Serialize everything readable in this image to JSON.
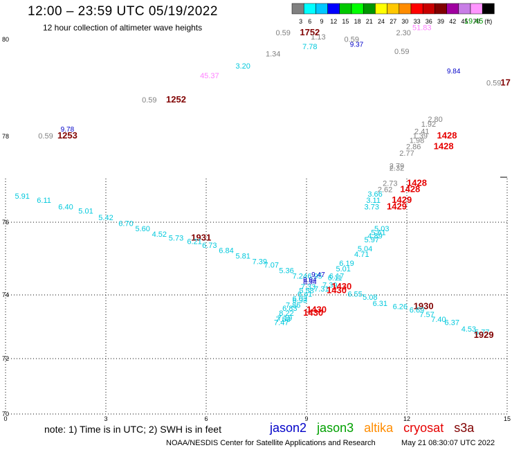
{
  "header": {
    "title": "12:00 – 23:59 UTC 05/19/2022",
    "subtitle": "12 hour collection of altimeter wave heights"
  },
  "scale": {
    "colors": [
      "#808080",
      "#00ffff",
      "#00c8ff",
      "#0000ff",
      "#00c800",
      "#00ff00",
      "#009600",
      "#ffff00",
      "#ffc800",
      "#ff8c00",
      "#ff0000",
      "#c80000",
      "#800000",
      "#a000a0",
      "#c87ee6",
      "#ff96ff",
      "#000000"
    ],
    "labels": [
      "3",
      "6",
      "9",
      "12",
      "15",
      "18",
      "21",
      "24",
      "27",
      "30",
      "33",
      "36",
      "39",
      "42",
      "45",
      "70",
      "(ft)"
    ]
  },
  "note": "note:  1) Time is in UTC;  2) SWH is in feet",
  "legend": [
    {
      "name": "jason2",
      "color": "#0000c8"
    },
    {
      "name": "jason3",
      "color": "#00a000"
    },
    {
      "name": "altika",
      "color": "#ff8c00"
    },
    {
      "name": "cryosat",
      "color": "#e60000"
    },
    {
      "name": "s3a",
      "color": "#800000"
    }
  ],
  "footer": {
    "left": "NOAA/NESDIS Center for Satellite Applications and Research",
    "right": "May 21 08:30:07 UTC 2022"
  },
  "chart_data": {
    "type": "scatter",
    "title": "12:00 – 23:59 UTC 05/19/2022",
    "xlim": [
      0,
      15
    ],
    "ylim": [
      70,
      80
    ],
    "xticks": [
      "0",
      "3",
      "6",
      "9",
      "12",
      "15"
    ],
    "yticks": [
      "70",
      "72",
      "74",
      "76",
      "78",
      "80"
    ],
    "grid": true,
    "points": [
      {
        "x": 1.2,
        "y": 77.95,
        "text": "0.59",
        "color": "#808080",
        "size": 11
      },
      {
        "x": 1.85,
        "y": 78.1,
        "text": "9.78",
        "color": "#0000c8",
        "size": 10
      },
      {
        "x": 1.85,
        "y": 77.95,
        "text": "1253",
        "color": "#800000",
        "size": 13,
        "bold": true
      },
      {
        "x": 4.3,
        "y": 78.7,
        "text": "0.59",
        "color": "#808080",
        "size": 11
      },
      {
        "x": 5.1,
        "y": 78.7,
        "text": "1252",
        "color": "#800000",
        "size": 13,
        "bold": true
      },
      {
        "x": 6.1,
        "y": 79.2,
        "text": "45.37",
        "color": "#ff80ff",
        "size": 11
      },
      {
        "x": 7.1,
        "y": 79.4,
        "text": "3.20",
        "color": "#00c8dc",
        "size": 11
      },
      {
        "x": 8.0,
        "y": 79.65,
        "text": "1.34",
        "color": "#808080",
        "size": 11
      },
      {
        "x": 8.3,
        "y": 80.15,
        "text": "0.59",
        "color": "#808080",
        "size": 11
      },
      {
        "x": 9.1,
        "y": 80.15,
        "text": "1752",
        "color": "#800000",
        "size": 13,
        "bold": true
      },
      {
        "x": 9.35,
        "y": 80.0,
        "text": "1.13",
        "color": "#808080",
        "size": 11
      },
      {
        "x": 9.1,
        "y": 79.8,
        "text": "7.78",
        "color": "#00c8dc",
        "size": 11
      },
      {
        "x": 10.35,
        "y": 79.95,
        "text": "0.59",
        "color": "#808080",
        "size": 11
      },
      {
        "x": 10.5,
        "y": 79.85,
        "text": "9.37",
        "color": "#0000c8",
        "size": 10
      },
      {
        "x": 11.9,
        "y": 80.15,
        "text": "2.30",
        "color": "#808080",
        "size": 11
      },
      {
        "x": 11.85,
        "y": 79.7,
        "text": "0.59",
        "color": "#808080",
        "size": 11
      },
      {
        "x": 12.45,
        "y": 80.35,
        "text": "51.83",
        "color": "#ff80ff",
        "size": 11
      },
      {
        "x": 14.0,
        "y": 80.6,
        "text": "19.45",
        "color": "#009600",
        "size": 11
      },
      {
        "x": 13.4,
        "y": 79.3,
        "text": "9.84",
        "color": "#0000c8",
        "size": 10
      },
      {
        "x": 14.6,
        "y": 79.05,
        "text": "0.59",
        "color": "#808080",
        "size": 11
      },
      {
        "x": 12.85,
        "y": 78.3,
        "text": "2.80",
        "color": "#808080",
        "size": 11
      },
      {
        "x": 12.65,
        "y": 78.2,
        "text": "1.92",
        "color": "#808080",
        "size": 11
      },
      {
        "x": 12.45,
        "y": 78.05,
        "text": "2.41",
        "color": "#808080",
        "size": 11
      },
      {
        "x": 12.4,
        "y": 77.95,
        "text": "1.39",
        "color": "#808080",
        "size": 11
      },
      {
        "x": 12.3,
        "y": 77.85,
        "text": "1.98",
        "color": "#808080",
        "size": 11
      },
      {
        "x": 12.2,
        "y": 77.7,
        "text": "2.86",
        "color": "#808080",
        "size": 11
      },
      {
        "x": 12.0,
        "y": 77.55,
        "text": "2.77",
        "color": "#808080",
        "size": 11
      },
      {
        "x": 13.2,
        "y": 77.95,
        "text": "1428",
        "color": "#e60000",
        "size": 13,
        "bold": true
      },
      {
        "x": 13.1,
        "y": 77.7,
        "text": "1428",
        "color": "#e60000",
        "size": 13,
        "bold": true
      },
      {
        "x": 11.7,
        "y": 77.25,
        "text": "2.79",
        "color": "#808080",
        "size": 11
      },
      {
        "x": 11.7,
        "y": 77.2,
        "text": "2.32",
        "color": "#808080",
        "size": 11
      },
      {
        "x": 11.5,
        "y": 76.85,
        "text": "2.73",
        "color": "#808080",
        "size": 11
      },
      {
        "x": 12.3,
        "y": 76.85,
        "text": "1428",
        "color": "#e60000",
        "size": 13,
        "bold": true
      },
      {
        "x": 11.35,
        "y": 76.7,
        "text": "2.62",
        "color": "#808080",
        "size": 11
      },
      {
        "x": 12.1,
        "y": 76.7,
        "text": "1428",
        "color": "#e60000",
        "size": 13,
        "bold": true
      },
      {
        "x": 11.05,
        "y": 76.6,
        "text": "3.66",
        "color": "#00c8dc",
        "size": 11
      },
      {
        "x": 11.0,
        "y": 76.45,
        "text": "3.11",
        "color": "#00c8dc",
        "size": 11
      },
      {
        "x": 11.85,
        "y": 76.45,
        "text": "1429",
        "color": "#e60000",
        "size": 13,
        "bold": true
      },
      {
        "x": 10.95,
        "y": 76.3,
        "text": "3.73",
        "color": "#00c8dc",
        "size": 11
      },
      {
        "x": 11.7,
        "y": 76.3,
        "text": "1429",
        "color": "#e60000",
        "size": 13,
        "bold": true
      },
      {
        "x": 0.5,
        "y": 76.55,
        "text": "5.91",
        "color": "#00c8dc",
        "size": 11
      },
      {
        "x": 1.15,
        "y": 76.45,
        "text": "6.11",
        "color": "#00c8dc",
        "size": 11
      },
      {
        "x": 1.8,
        "y": 76.3,
        "text": "6.40",
        "color": "#00c8dc",
        "size": 11
      },
      {
        "x": 2.4,
        "y": 76.2,
        "text": "5.01",
        "color": "#00c8dc",
        "size": 11
      },
      {
        "x": 3.0,
        "y": 76.05,
        "text": "5.42",
        "color": "#00c8dc",
        "size": 11
      },
      {
        "x": 3.6,
        "y": 75.9,
        "text": "6.70",
        "color": "#00c8dc",
        "size": 11
      },
      {
        "x": 4.1,
        "y": 75.75,
        "text": "5.60",
        "color": "#00c8dc",
        "size": 11
      },
      {
        "x": 4.6,
        "y": 75.6,
        "text": "4.52",
        "color": "#00c8dc",
        "size": 11
      },
      {
        "x": 5.1,
        "y": 75.5,
        "text": "5.73",
        "color": "#00c8dc",
        "size": 11
      },
      {
        "x": 5.85,
        "y": 75.5,
        "text": "1931",
        "color": "#800000",
        "size": 13,
        "bold": true
      },
      {
        "x": 5.65,
        "y": 75.4,
        "text": "6.21",
        "color": "#00c8dc",
        "size": 11
      },
      {
        "x": 6.1,
        "y": 75.3,
        "text": "6.73",
        "color": "#00c8dc",
        "size": 11
      },
      {
        "x": 6.6,
        "y": 75.15,
        "text": "6.84",
        "color": "#00c8dc",
        "size": 11
      },
      {
        "x": 7.1,
        "y": 75.0,
        "text": "5.81",
        "color": "#00c8dc",
        "size": 11
      },
      {
        "x": 7.6,
        "y": 74.85,
        "text": "7.39",
        "color": "#00c8dc",
        "size": 11
      },
      {
        "x": 7.95,
        "y": 74.75,
        "text": "7.07",
        "color": "#00c8dc",
        "size": 11
      },
      {
        "x": 8.4,
        "y": 74.6,
        "text": "5.36",
        "color": "#00c8dc",
        "size": 11
      },
      {
        "x": 8.8,
        "y": 74.45,
        "text": "7.24",
        "color": "#00c8dc",
        "size": 11
      },
      {
        "x": 9.25,
        "y": 74.45,
        "text": "6.95",
        "color": "#00c8dc",
        "size": 11
      },
      {
        "x": 9.35,
        "y": 74.5,
        "text": "9.47",
        "color": "#0000c8",
        "size": 10
      },
      {
        "x": 9.1,
        "y": 74.35,
        "text": "9.94",
        "color": "#0000c8",
        "size": 10
      },
      {
        "x": 9.1,
        "y": 74.3,
        "text": "8.94",
        "color": "#0000c8",
        "size": 10
      },
      {
        "x": 9.7,
        "y": 74.2,
        "text": "7.39",
        "color": "#00c8dc",
        "size": 11
      },
      {
        "x": 9.45,
        "y": 74.1,
        "text": "7.31",
        "color": "#00c8dc",
        "size": 11
      },
      {
        "x": 9.05,
        "y": 74.15,
        "text": "7.33",
        "color": "#00c8dc",
        "size": 11
      },
      {
        "x": 9.0,
        "y": 74.05,
        "text": "5.58",
        "color": "#00c8dc",
        "size": 11
      },
      {
        "x": 10.05,
        "y": 74.15,
        "text": "1430",
        "color": "#e60000",
        "size": 13,
        "bold": true
      },
      {
        "x": 9.9,
        "y": 74.05,
        "text": "1430",
        "color": "#e60000",
        "size": 13,
        "bold": true
      },
      {
        "x": 10.45,
        "y": 73.95,
        "text": "6.55",
        "color": "#00c8dc",
        "size": 11
      },
      {
        "x": 10.9,
        "y": 73.85,
        "text": "5.08",
        "color": "#00c8dc",
        "size": 11
      },
      {
        "x": 11.2,
        "y": 73.65,
        "text": "6.31",
        "color": "#00c8dc",
        "size": 11
      },
      {
        "x": 11.8,
        "y": 73.55,
        "text": "6.26",
        "color": "#00c8dc",
        "size": 11
      },
      {
        "x": 12.5,
        "y": 73.55,
        "text": "1930",
        "color": "#800000",
        "size": 13,
        "bold": true
      },
      {
        "x": 12.3,
        "y": 73.45,
        "text": "6.69",
        "color": "#00c8dc",
        "size": 11
      },
      {
        "x": 12.6,
        "y": 73.3,
        "text": "7.57",
        "color": "#00c8dc",
        "size": 11
      },
      {
        "x": 12.95,
        "y": 73.15,
        "text": "7.40",
        "color": "#00c8dc",
        "size": 11
      },
      {
        "x": 13.35,
        "y": 73.05,
        "text": "6.37",
        "color": "#00c8dc",
        "size": 11
      },
      {
        "x": 13.85,
        "y": 72.85,
        "text": "4.53",
        "color": "#00c8dc",
        "size": 11
      },
      {
        "x": 14.25,
        "y": 72.75,
        "text": "5.77",
        "color": "#00c8dc",
        "size": 11
      },
      {
        "x": 14.3,
        "y": 72.65,
        "text": "1929",
        "color": "#800000",
        "size": 13,
        "bold": true
      },
      {
        "x": 11.25,
        "y": 75.75,
        "text": "5.03",
        "color": "#00c8dc",
        "size": 11
      },
      {
        "x": 11.15,
        "y": 75.65,
        "text": "5.61",
        "color": "#00c8dc",
        "size": 11
      },
      {
        "x": 11.05,
        "y": 75.55,
        "text": "4.89",
        "color": "#00c8dc",
        "size": 11
      },
      {
        "x": 10.95,
        "y": 75.45,
        "text": "5.97",
        "color": "#00c8dc",
        "size": 11
      },
      {
        "x": 10.75,
        "y": 75.2,
        "text": "5.04",
        "color": "#00c8dc",
        "size": 11
      },
      {
        "x": 10.65,
        "y": 75.05,
        "text": "4.71",
        "color": "#00c8dc",
        "size": 11
      },
      {
        "x": 10.2,
        "y": 74.8,
        "text": "6.19",
        "color": "#00c8dc",
        "size": 11
      },
      {
        "x": 10.1,
        "y": 74.65,
        "text": "5.01",
        "color": "#00c8dc",
        "size": 11
      },
      {
        "x": 9.9,
        "y": 74.45,
        "text": "6.17",
        "color": "#00c8dc",
        "size": 11
      },
      {
        "x": 9.85,
        "y": 74.4,
        "text": "6.11",
        "color": "#00c8dc",
        "size": 11
      },
      {
        "x": 8.95,
        "y": 73.95,
        "text": "6.41",
        "color": "#00c8dc",
        "size": 11
      },
      {
        "x": 8.8,
        "y": 73.8,
        "text": "6.03",
        "color": "#00c8dc",
        "size": 11
      },
      {
        "x": 8.8,
        "y": 73.75,
        "text": "6.93",
        "color": "#00c8dc",
        "size": 11
      },
      {
        "x": 8.6,
        "y": 73.6,
        "text": "7.86",
        "color": "#00c8dc",
        "size": 11
      },
      {
        "x": 8.5,
        "y": 73.5,
        "text": "6.83",
        "color": "#00c8dc",
        "size": 11
      },
      {
        "x": 8.4,
        "y": 73.35,
        "text": "8.22",
        "color": "#00c8dc",
        "size": 11
      },
      {
        "x": 8.35,
        "y": 73.2,
        "text": "7.19",
        "color": "#00c8dc",
        "size": 11
      },
      {
        "x": 8.3,
        "y": 73.15,
        "text": "7.58",
        "color": "#00c8dc",
        "size": 11
      },
      {
        "x": 8.25,
        "y": 73.05,
        "text": "7.47",
        "color": "#00c8dc",
        "size": 11
      },
      {
        "x": 9.3,
        "y": 73.45,
        "text": "1430",
        "color": "#e60000",
        "size": 13,
        "bold": true
      },
      {
        "x": 9.2,
        "y": 73.35,
        "text": "1430",
        "color": "#e60000",
        "size": 13,
        "bold": true
      },
      {
        "x": 14.95,
        "y": 79.05,
        "text": "17",
        "color": "#800000",
        "size": 13,
        "bold": true
      }
    ]
  }
}
